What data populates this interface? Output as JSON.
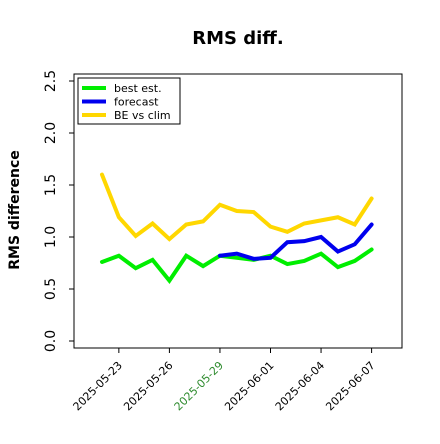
{
  "chart_data": {
    "type": "line",
    "title": "RMS diff.",
    "xlabel": "",
    "ylabel": "RMS difference",
    "x": [
      "2025-05-22",
      "2025-05-23",
      "2025-05-24",
      "2025-05-25",
      "2025-05-26",
      "2025-05-27",
      "2025-05-28",
      "2025-05-29",
      "2025-05-30",
      "2025-05-31",
      "2025-06-01",
      "2025-06-02",
      "2025-06-03",
      "2025-06-04",
      "2025-06-05",
      "2025-06-06",
      "2025-06-07"
    ],
    "xticks": [
      "2025-05-23",
      "2025-05-26",
      "2025-05-29",
      "2025-06-01",
      "2025-06-04",
      "2025-06-07"
    ],
    "highlighted_tick": "2025-05-29",
    "highlight_color": "#2e8b2e",
    "ylim": [
      0.0,
      2.5
    ],
    "yticks": [
      "0.0",
      "0.5",
      "1.0",
      "1.5",
      "2.0",
      "2.5"
    ],
    "legend_position": "top-left",
    "series": [
      {
        "name": "best est.",
        "color": "#00ee00",
        "values": [
          0.76,
          0.82,
          0.7,
          0.78,
          0.58,
          0.82,
          0.72,
          0.82,
          0.8,
          0.78,
          0.82,
          0.74,
          0.77,
          0.84,
          0.71,
          0.77,
          0.88
        ]
      },
      {
        "name": "forecast",
        "color": "#0000ee",
        "values": [
          null,
          null,
          null,
          null,
          null,
          null,
          null,
          0.82,
          0.84,
          0.79,
          0.8,
          0.95,
          0.96,
          1.0,
          0.86,
          0.93,
          1.12
        ]
      },
      {
        "name": "BE vs clim",
        "color": "#ffd700",
        "values": [
          1.6,
          1.19,
          1.01,
          1.13,
          0.98,
          1.12,
          1.15,
          1.31,
          1.25,
          1.24,
          1.1,
          1.05,
          1.13,
          1.16,
          1.19,
          1.12,
          1.37
        ]
      }
    ]
  }
}
